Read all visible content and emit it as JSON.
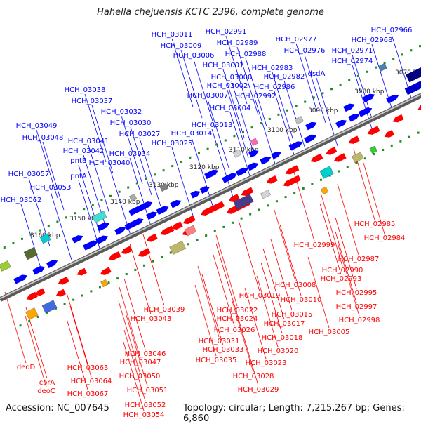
{
  "title": "Hahella chejuensis KCTC 2396, complete genome",
  "footer": {
    "accession": "Accession: NC_007645",
    "summary": "Topology: circular; Length: 7,215,267 bp; Genes: 6,860"
  },
  "colors": {
    "forward_strand": "#0000ff",
    "reverse_strand": "#ff0000",
    "backbone": "#808080",
    "ruler_tick": "#228b22"
  },
  "ruler": [
    "3070 kbp",
    "3080 kbp",
    "3090 kbp",
    "3100 kbp",
    "3110 kbp",
    "3120 kbp",
    "3130 kbp",
    "3140 kbp",
    "3150 kbp",
    "3160 kbp"
  ],
  "top_labels": [
    "HCH_03011",
    "HCH_02991",
    "HCH_03009",
    "HCH_02989",
    "HCH_03006",
    "HCH_02988",
    "HCH_03001",
    "HCH_02983",
    "HCH_03000",
    "HCH_02982",
    "HCH_03002",
    "HCH_02986",
    "HCH_03007",
    "HCH_02992",
    "HCH_03004",
    "HCH_02977",
    "HCH_02966",
    "HCH_02976",
    "HCH_02968",
    "HCH_02971",
    "HCH_02974",
    "dsdA",
    "HCH_03038",
    "HCH_03037",
    "HCH_03032",
    "HCH_03030",
    "HCH_03027",
    "HCH_03013",
    "HCH_03014",
    "HCH_03025",
    "HCH_03049",
    "HCH_03048",
    "HCH_03041",
    "HCH_03042",
    "HCH_03034",
    "pntB",
    "HCH_03040",
    "pntA",
    "HCH_03057",
    "HCH_03053",
    "HCH_03062"
  ],
  "bottom_labels": [
    "HCH_02985",
    "HCH_02984",
    "HCH_02999",
    "HCH_02987",
    "HCH_02990",
    "HCH_02993",
    "HCH_03008",
    "HCH_02995",
    "HCH_03010",
    "HCH_02997",
    "HCH_02998",
    "HCH_03019",
    "HCH_03005",
    "HCH_03015",
    "HCH_03022",
    "HCH_03017",
    "HCH_03024",
    "HCH_03039",
    "HCH_03018",
    "HCH_03026",
    "HCH_03043",
    "HCH_03031",
    "HCH_03033",
    "HCH_03020",
    "HCH_03035",
    "HCH_03023",
    "HCH_03046",
    "HCH_03047",
    "HCH_03028",
    "HCH_03050",
    "HCH_03029",
    "HCH_03051",
    "HCH_03052",
    "HCH_03054",
    "HCH_03063",
    "HCH_03064",
    "HCH_03067",
    "deoD",
    "corA",
    "deoC"
  ]
}
